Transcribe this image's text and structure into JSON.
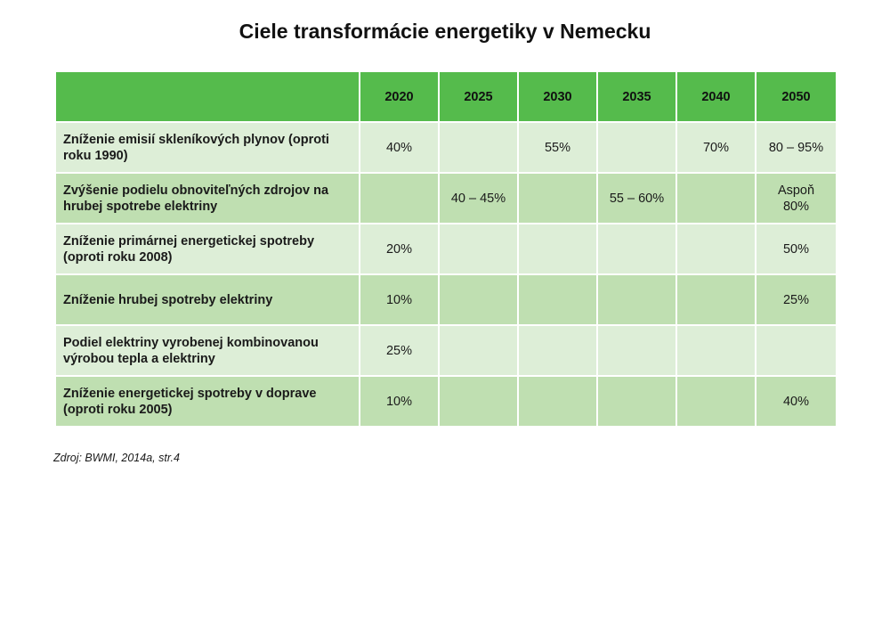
{
  "title": "Ciele transformácie energetiky v Nemecku",
  "table": {
    "corner": "",
    "years": [
      "2020",
      "2025",
      "2030",
      "2035",
      "2040",
      "2050"
    ],
    "rows": [
      {
        "label": "Zníženie emisií skleníkových plynov (oproti roku 1990)",
        "values": [
          "40%",
          "",
          "55%",
          "",
          "70%",
          "80 – 95%"
        ]
      },
      {
        "label": "Zvýšenie podielu obnoviteľných zdrojov na hrubej spotrebe elektriny",
        "values": [
          "",
          "40 – 45%",
          "",
          "55 – 60%",
          "",
          "Aspoň 80%"
        ]
      },
      {
        "label": "Zníženie primárnej energetickej spotreby (oproti roku 2008)",
        "values": [
          "20%",
          "",
          "",
          "",
          "",
          "50%"
        ]
      },
      {
        "label": "Zníženie hrubej spotreby elektriny",
        "values": [
          "10%",
          "",
          "",
          "",
          "",
          "25%"
        ]
      },
      {
        "label": "Podiel elektriny vyrobenej kombinovanou výrobou tepla a elektriny",
        "values": [
          "25%",
          "",
          "",
          "",
          "",
          ""
        ]
      },
      {
        "label": "Zníženie energetickej spotreby v doprave (oproti roku 2005)",
        "values": [
          "10%",
          "",
          "",
          "",
          "",
          "40%"
        ]
      }
    ]
  },
  "source": "Zdroj: BWMI, 2014a, str.4",
  "colors": {
    "header": "#55bb4c",
    "row_light": "#ddeed7",
    "row_dark": "#bfdfb1"
  }
}
